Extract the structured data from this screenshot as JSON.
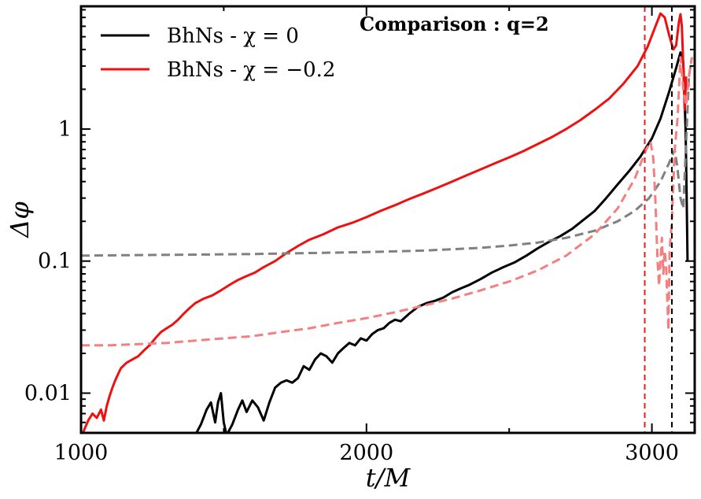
{
  "chart_data": {
    "type": "line",
    "title": "Comparison : q=2",
    "xlabel": "t/M",
    "ylabel": "Δφ",
    "xlim": [
      1000,
      3150
    ],
    "ylim": [
      0.005,
      8.5
    ],
    "yscale": "log",
    "grid": false,
    "legend_position": "top-left",
    "x_ticks": [
      {
        "value": 1000,
        "label": "1000"
      },
      {
        "value": 2000,
        "label": "2000"
      },
      {
        "value": 3000,
        "label": "3000"
      }
    ],
    "y_ticks": [
      {
        "value": 0.01,
        "label": "0.01"
      },
      {
        "value": 0.1,
        "label": "0.1"
      },
      {
        "value": 1,
        "label": "1"
      }
    ],
    "vertical_lines": [
      {
        "x": 2975,
        "color": "#dd2222",
        "style": "dashed"
      },
      {
        "x": 3070,
        "color": "#000000",
        "style": "dashed"
      }
    ],
    "series": [
      {
        "name": "BhNs - χ = 0",
        "color": "#000000",
        "style": "solid",
        "points": [
          [
            1400,
            0.0048
          ],
          [
            1420,
            0.0058
          ],
          [
            1440,
            0.0075
          ],
          [
            1455,
            0.0085
          ],
          [
            1470,
            0.006
          ],
          [
            1480,
            0.0085
          ],
          [
            1490,
            0.01
          ],
          [
            1500,
            0.006
          ],
          [
            1510,
            0.0048
          ],
          [
            1530,
            0.0058
          ],
          [
            1550,
            0.0075
          ],
          [
            1565,
            0.0088
          ],
          [
            1580,
            0.0072
          ],
          [
            1600,
            0.0088
          ],
          [
            1620,
            0.0078
          ],
          [
            1640,
            0.0062
          ],
          [
            1660,
            0.0085
          ],
          [
            1680,
            0.011
          ],
          [
            1700,
            0.012
          ],
          [
            1720,
            0.0125
          ],
          [
            1740,
            0.012
          ],
          [
            1760,
            0.013
          ],
          [
            1780,
            0.016
          ],
          [
            1800,
            0.015
          ],
          [
            1820,
            0.018
          ],
          [
            1840,
            0.02
          ],
          [
            1860,
            0.019
          ],
          [
            1880,
            0.017
          ],
          [
            1900,
            0.02
          ],
          [
            1920,
            0.022
          ],
          [
            1940,
            0.024
          ],
          [
            1960,
            0.023
          ],
          [
            1980,
            0.026
          ],
          [
            2000,
            0.025
          ],
          [
            2020,
            0.028
          ],
          [
            2040,
            0.03
          ],
          [
            2060,
            0.031
          ],
          [
            2080,
            0.034
          ],
          [
            2100,
            0.036
          ],
          [
            2120,
            0.035
          ],
          [
            2150,
            0.04
          ],
          [
            2180,
            0.045
          ],
          [
            2210,
            0.048
          ],
          [
            2240,
            0.05
          ],
          [
            2270,
            0.053
          ],
          [
            2300,
            0.058
          ],
          [
            2330,
            0.062
          ],
          [
            2360,
            0.066
          ],
          [
            2400,
            0.073
          ],
          [
            2440,
            0.082
          ],
          [
            2480,
            0.09
          ],
          [
            2520,
            0.098
          ],
          [
            2560,
            0.11
          ],
          [
            2600,
            0.125
          ],
          [
            2640,
            0.14
          ],
          [
            2680,
            0.155
          ],
          [
            2720,
            0.175
          ],
          [
            2760,
            0.205
          ],
          [
            2800,
            0.24
          ],
          [
            2840,
            0.3
          ],
          [
            2880,
            0.38
          ],
          [
            2920,
            0.48
          ],
          [
            2960,
            0.62
          ],
          [
            3000,
            0.85
          ],
          [
            3030,
            1.2
          ],
          [
            3060,
            1.9
          ],
          [
            3085,
            2.9
          ],
          [
            3100,
            3.8
          ],
          [
            3110,
            3.2
          ],
          [
            3118,
            1.0
          ],
          [
            3122,
            0.3
          ],
          [
            3125,
            0.1
          ]
        ]
      },
      {
        "name": "BhNs - χ = −0.2",
        "color": "#ee1111",
        "style": "solid",
        "points": [
          [
            1000,
            0.0042
          ],
          [
            1010,
            0.0052
          ],
          [
            1025,
            0.0062
          ],
          [
            1040,
            0.007
          ],
          [
            1055,
            0.0065
          ],
          [
            1070,
            0.0075
          ],
          [
            1080,
            0.0062
          ],
          [
            1090,
            0.008
          ],
          [
            1100,
            0.0095
          ],
          [
            1110,
            0.011
          ],
          [
            1120,
            0.0125
          ],
          [
            1130,
            0.014
          ],
          [
            1140,
            0.0155
          ],
          [
            1160,
            0.017
          ],
          [
            1180,
            0.018
          ],
          [
            1200,
            0.019
          ],
          [
            1220,
            0.021
          ],
          [
            1240,
            0.023
          ],
          [
            1260,
            0.026
          ],
          [
            1280,
            0.029
          ],
          [
            1300,
            0.031
          ],
          [
            1320,
            0.033
          ],
          [
            1340,
            0.036
          ],
          [
            1360,
            0.04
          ],
          [
            1380,
            0.044
          ],
          [
            1400,
            0.048
          ],
          [
            1430,
            0.052
          ],
          [
            1460,
            0.055
          ],
          [
            1490,
            0.06
          ],
          [
            1520,
            0.066
          ],
          [
            1550,
            0.072
          ],
          [
            1580,
            0.077
          ],
          [
            1610,
            0.082
          ],
          [
            1640,
            0.09
          ],
          [
            1680,
            0.1
          ],
          [
            1720,
            0.115
          ],
          [
            1760,
            0.13
          ],
          [
            1800,
            0.145
          ],
          [
            1850,
            0.16
          ],
          [
            1900,
            0.18
          ],
          [
            1950,
            0.195
          ],
          [
            2000,
            0.215
          ],
          [
            2050,
            0.24
          ],
          [
            2100,
            0.265
          ],
          [
            2150,
            0.295
          ],
          [
            2200,
            0.325
          ],
          [
            2250,
            0.36
          ],
          [
            2300,
            0.4
          ],
          [
            2350,
            0.445
          ],
          [
            2400,
            0.495
          ],
          [
            2450,
            0.55
          ],
          [
            2500,
            0.61
          ],
          [
            2550,
            0.68
          ],
          [
            2600,
            0.77
          ],
          [
            2650,
            0.87
          ],
          [
            2700,
            1.0
          ],
          [
            2750,
            1.17
          ],
          [
            2800,
            1.4
          ],
          [
            2850,
            1.7
          ],
          [
            2900,
            2.2
          ],
          [
            2950,
            3.0
          ],
          [
            2985,
            4.2
          ],
          [
            3010,
            5.8
          ],
          [
            3030,
            7.5
          ],
          [
            3045,
            7.0
          ],
          [
            3060,
            5.2
          ],
          [
            3075,
            4.0
          ],
          [
            3085,
            4.3
          ],
          [
            3095,
            6.5
          ],
          [
            3100,
            7.4
          ],
          [
            3105,
            6.0
          ],
          [
            3110,
            3.0
          ],
          [
            3115,
            1.4
          ],
          [
            3120,
            2.5
          ]
        ]
      },
      {
        "name": "",
        "color": "#808080",
        "style": "dashed",
        "points": [
          [
            1000,
            0.11
          ],
          [
            1200,
            0.111
          ],
          [
            1400,
            0.112
          ],
          [
            1600,
            0.113
          ],
          [
            1800,
            0.115
          ],
          [
            2000,
            0.117
          ],
          [
            2200,
            0.12
          ],
          [
            2400,
            0.126
          ],
          [
            2500,
            0.131
          ],
          [
            2600,
            0.138
          ],
          [
            2700,
            0.15
          ],
          [
            2800,
            0.17
          ],
          [
            2880,
            0.2
          ],
          [
            2940,
            0.24
          ],
          [
            2990,
            0.3
          ],
          [
            3030,
            0.4
          ],
          [
            3060,
            0.55
          ],
          [
            3080,
            0.7
          ],
          [
            3090,
            0.5
          ],
          [
            3100,
            0.3
          ],
          [
            3110,
            0.25
          ],
          [
            3120,
            0.8
          ],
          [
            3130,
            2.5
          ],
          [
            3140,
            3.5
          ]
        ]
      },
      {
        "name": "",
        "color": "#f47f7f",
        "style": "dashed",
        "points": [
          [
            1000,
            0.023
          ],
          [
            1100,
            0.023
          ],
          [
            1200,
            0.0235
          ],
          [
            1300,
            0.024
          ],
          [
            1400,
            0.025
          ],
          [
            1500,
            0.026
          ],
          [
            1600,
            0.027
          ],
          [
            1700,
            0.029
          ],
          [
            1800,
            0.031
          ],
          [
            1900,
            0.034
          ],
          [
            2000,
            0.037
          ],
          [
            2100,
            0.041
          ],
          [
            2200,
            0.046
          ],
          [
            2300,
            0.052
          ],
          [
            2400,
            0.06
          ],
          [
            2500,
            0.07
          ],
          [
            2600,
            0.085
          ],
          [
            2700,
            0.11
          ],
          [
            2800,
            0.16
          ],
          [
            2880,
            0.25
          ],
          [
            2940,
            0.42
          ],
          [
            2980,
            0.7
          ],
          [
            2995,
            0.8
          ],
          [
            3005,
            0.6
          ],
          [
            3012,
            0.3
          ],
          [
            3020,
            0.1
          ],
          [
            3025,
            0.065
          ],
          [
            3030,
            0.1
          ],
          [
            3035,
            0.15
          ],
          [
            3040,
            0.08
          ],
          [
            3045,
            0.12
          ],
          [
            3050,
            0.09
          ],
          [
            3058,
            0.03
          ],
          [
            3062,
            0.12
          ],
          [
            3070,
            0.2
          ],
          [
            3080,
            0.7
          ],
          [
            3090,
            1.2
          ],
          [
            3100,
            3.5
          ],
          [
            3110,
            2.0
          ],
          [
            3120,
            1.5
          ],
          [
            3130,
            2.5
          ],
          [
            3140,
            3.5
          ]
        ]
      }
    ]
  }
}
